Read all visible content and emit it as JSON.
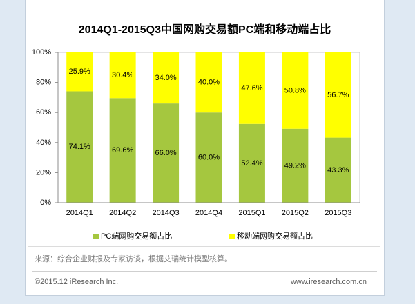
{
  "chart_data": {
    "type": "bar",
    "stacking": "percent",
    "title": "2014Q1-2015Q3中国网购交易额PC端和移动端占比",
    "xlabel": "",
    "ylabel": "",
    "categories": [
      "2014Q1",
      "2014Q2",
      "2014Q3",
      "2014Q4",
      "2015Q1",
      "2015Q2",
      "2015Q3"
    ],
    "series": [
      {
        "name": "PC端网购交易额占比",
        "color": "#a5c73f",
        "values": [
          74.1,
          69.6,
          66.0,
          60.0,
          52.4,
          49.2,
          43.3
        ],
        "data_labels": [
          "74.1%",
          "69.6%",
          "66.0%",
          "60.0%",
          "52.4%",
          "49.2%",
          "43.3%"
        ]
      },
      {
        "name": "移动端网购交易额占比",
        "color": "#ffff00",
        "values": [
          25.9,
          30.4,
          34.0,
          40.0,
          47.6,
          50.8,
          56.7
        ],
        "data_labels": [
          "25.9%",
          "30.4%",
          "34.0%",
          "40.0%",
          "47.6%",
          "50.8%",
          "56.7%"
        ]
      }
    ],
    "ylim": [
      0,
      100
    ],
    "yticks": [
      0,
      20,
      40,
      60,
      80,
      100
    ],
    "ytick_labels": [
      "0%",
      "20%",
      "40%",
      "60%",
      "80%",
      "100%"
    ],
    "grid": false,
    "legend_position": "bottom"
  },
  "source_note": "来源：综合企业财报及专家访谈，根据艾瑞统计模型核算。",
  "footer": {
    "copyright": "©2015.12 iResearch Inc.",
    "website": "www.iresearch.com.cn"
  }
}
